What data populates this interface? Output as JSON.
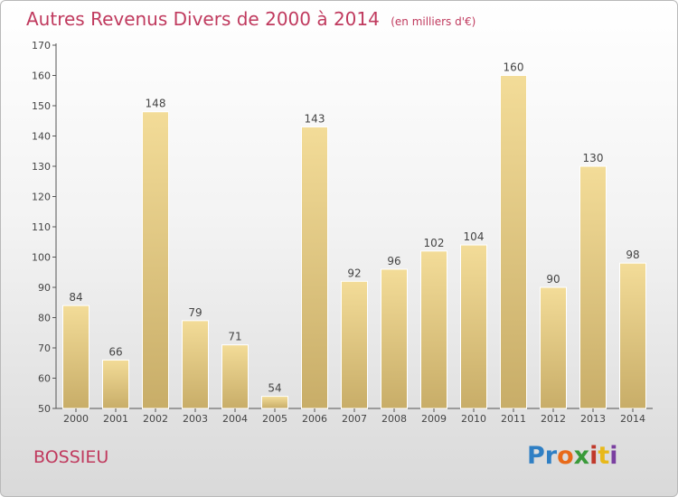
{
  "header": {
    "title": "Autres Revenus Divers de 2000 à 2014",
    "unit": "(en milliers d'€)"
  },
  "footer": {
    "city": "BOSSIEU",
    "logo": [
      "Pr",
      "o",
      "x",
      "i",
      "t",
      "i"
    ]
  },
  "colors": {
    "title": "#c03a5e",
    "bar_light": "#f3dc98",
    "bar_dark": "#c8ad68"
  },
  "chart_data": {
    "type": "bar",
    "categories": [
      "2000",
      "2001",
      "2002",
      "2003",
      "2004",
      "2005",
      "2006",
      "2007",
      "2008",
      "2009",
      "2010",
      "2011",
      "2012",
      "2013",
      "2014"
    ],
    "values": [
      84,
      66,
      148,
      79,
      71,
      54,
      143,
      92,
      96,
      102,
      104,
      160,
      90,
      130,
      98
    ],
    "ylim": [
      50,
      170
    ],
    "yticks": [
      50,
      60,
      70,
      80,
      90,
      100,
      110,
      120,
      130,
      140,
      150,
      160,
      170
    ],
    "grid": false
  }
}
